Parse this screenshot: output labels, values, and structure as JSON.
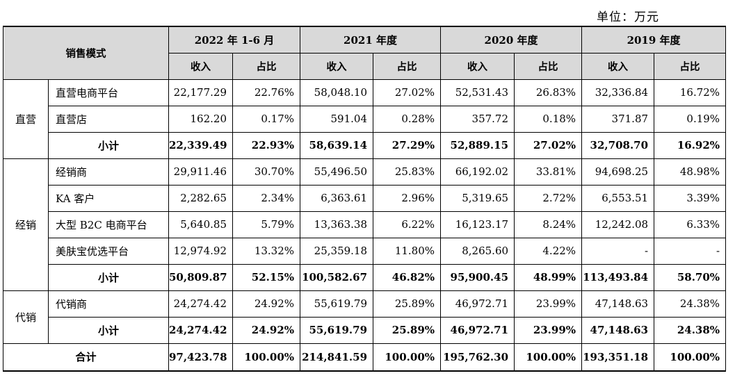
{
  "unit_label": "单位：万元",
  "header": {
    "mode_label": "销售模式",
    "periods": [
      "2022 年 1-6 月",
      "2021 年度",
      "2020 年度",
      "2019 年度"
    ],
    "revenue_label": "收入",
    "share_label": "占比"
  },
  "groups": {
    "direct": {
      "label": "直营",
      "rows": [
        {
          "name": "直营电商平台",
          "values": [
            "22,177.29",
            "22.76%",
            "58,048.10",
            "27.02%",
            "52,531.43",
            "26.83%",
            "32,336.84",
            "16.72%"
          ]
        },
        {
          "name": "直营店",
          "values": [
            "162.20",
            "0.17%",
            "591.04",
            "0.28%",
            "357.72",
            "0.18%",
            "371.87",
            "0.19%"
          ]
        }
      ],
      "subtotal": {
        "name": "小计",
        "values": [
          "22,339.49",
          "22.93%",
          "58,639.14",
          "27.29%",
          "52,889.15",
          "27.02%",
          "32,708.70",
          "16.92%"
        ]
      }
    },
    "distribution": {
      "label": "经销",
      "rows": [
        {
          "name": "经销商",
          "values": [
            "29,911.46",
            "30.70%",
            "55,496.50",
            "25.83%",
            "66,192.02",
            "33.81%",
            "94,698.25",
            "48.98%"
          ]
        },
        {
          "name": "KA 客户",
          "values": [
            "2,282.65",
            "2.34%",
            "6,363.61",
            "2.96%",
            "5,319.65",
            "2.72%",
            "6,553.51",
            "3.39%"
          ]
        },
        {
          "name": "大型 B2C 电商平台",
          "values": [
            "5,640.85",
            "5.79%",
            "13,363.38",
            "6.22%",
            "16,123.17",
            "8.24%",
            "12,242.08",
            "6.33%"
          ]
        },
        {
          "name": "美肤宝优选平台",
          "values": [
            "12,974.92",
            "13.32%",
            "25,359.18",
            "11.80%",
            "8,265.60",
            "4.22%",
            "-",
            "-"
          ]
        }
      ],
      "subtotal": {
        "name": "小计",
        "values": [
          "50,809.87",
          "52.15%",
          "100,582.67",
          "46.82%",
          "95,900.45",
          "48.99%",
          "113,493.84",
          "58.70%"
        ]
      }
    },
    "consignment": {
      "label": "代销",
      "rows": [
        {
          "name": "代销商",
          "values": [
            "24,274.42",
            "24.92%",
            "55,619.79",
            "25.89%",
            "46,972.71",
            "23.99%",
            "47,148.63",
            "24.38%"
          ]
        }
      ],
      "subtotal": {
        "name": "小计",
        "values": [
          "24,274.42",
          "24.92%",
          "55,619.79",
          "25.89%",
          "46,972.71",
          "23.99%",
          "47,148.63",
          "24.38%"
        ]
      }
    }
  },
  "total": {
    "name": "合计",
    "values": [
      "97,423.78",
      "100.00%",
      "214,841.59",
      "100.00%",
      "195,762.30",
      "100.00%",
      "193,351.18",
      "100.00%"
    ]
  }
}
